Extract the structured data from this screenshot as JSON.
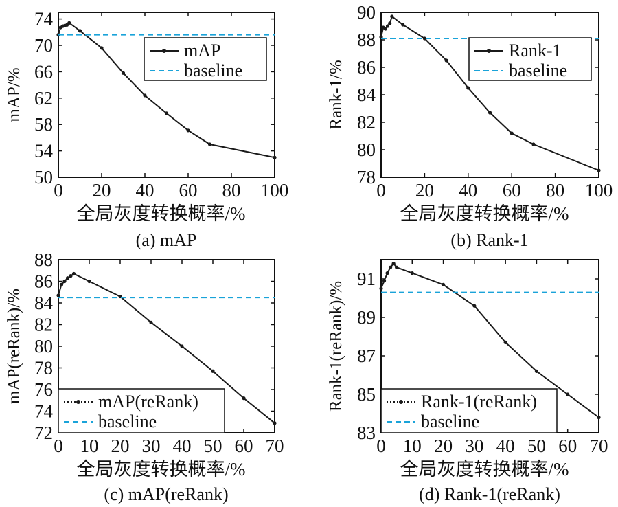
{
  "chart_data": [
    {
      "type": "line",
      "caption": "(a) mAP",
      "xlabel": "全局灰度转换概率/%",
      "ylabel": "mAP/%",
      "xlim": [
        0,
        100
      ],
      "ylim": [
        50,
        75
      ],
      "xticks": [
        0,
        20,
        40,
        60,
        80,
        100
      ],
      "yticks": [
        50,
        54,
        58,
        62,
        66,
        70,
        74
      ],
      "legend_position": "top-right",
      "series": [
        {
          "name": "mAP",
          "style": "line-dots",
          "x": [
            0,
            1,
            2,
            3,
            4,
            5,
            10,
            20,
            30,
            40,
            50,
            60,
            70,
            100
          ],
          "y": [
            71.6,
            72.7,
            72.9,
            73.0,
            73.1,
            73.4,
            72.2,
            69.6,
            65.8,
            62.4,
            59.7,
            57.1,
            55.0,
            53.0
          ]
        },
        {
          "name": "baseline",
          "style": "dashed",
          "x": [
            0,
            100
          ],
          "y": [
            71.6,
            71.6
          ]
        }
      ]
    },
    {
      "type": "line",
      "caption": "(b) Rank-1",
      "xlabel": "全局灰度转换概率/%",
      "ylabel": "Rank-1/%",
      "xlim": [
        0,
        100
      ],
      "ylim": [
        78,
        90
      ],
      "xticks": [
        0,
        20,
        40,
        60,
        80,
        100
      ],
      "yticks": [
        78,
        80,
        82,
        84,
        86,
        88,
        90
      ],
      "legend_position": "top-right",
      "series": [
        {
          "name": "Rank-1",
          "style": "line-dots",
          "x": [
            0,
            1,
            2,
            3,
            4,
            5,
            10,
            20,
            30,
            40,
            50,
            60,
            70,
            100
          ],
          "y": [
            88.2,
            88.9,
            88.8,
            89.0,
            89.2,
            89.7,
            89.1,
            88.1,
            86.5,
            84.5,
            82.7,
            81.2,
            80.4,
            78.5
          ]
        },
        {
          "name": "baseline",
          "style": "dashed",
          "x": [
            0,
            100
          ],
          "y": [
            88.1,
            88.1
          ]
        }
      ]
    },
    {
      "type": "line",
      "caption": "(c) mAP(reRank)",
      "xlabel": "全局灰度转换概率/%",
      "ylabel": "mAP(reRank)/%",
      "xlim": [
        0,
        70
      ],
      "ylim": [
        72,
        88
      ],
      "xticks": [
        0,
        10,
        20,
        30,
        40,
        50,
        60,
        70
      ],
      "yticks": [
        72,
        74,
        76,
        78,
        80,
        82,
        84,
        86,
        88
      ],
      "legend_position": "bottom-left",
      "series": [
        {
          "name": "mAP(reRank)",
          "style": "dotted-dots",
          "x": [
            0,
            1,
            2,
            3,
            4,
            5,
            10,
            20,
            30,
            40,
            50,
            60,
            70
          ],
          "y": [
            84.7,
            85.7,
            86.0,
            86.3,
            86.5,
            86.7,
            86.0,
            84.6,
            82.2,
            80.0,
            77.7,
            75.2,
            72.9
          ]
        },
        {
          "name": "baseline",
          "style": "dashed",
          "x": [
            0,
            70
          ],
          "y": [
            84.5,
            84.5
          ]
        }
      ]
    },
    {
      "type": "line",
      "caption": "(d) Rank-1(reRank)",
      "xlabel": "全局灰度转换概率/%",
      "ylabel": "Rank-1(reRank)/%",
      "xlim": [
        0,
        70
      ],
      "ylim": [
        83,
        92
      ],
      "xticks": [
        0,
        10,
        20,
        30,
        40,
        50,
        60,
        70
      ],
      "yticks": [
        83,
        85,
        87,
        89,
        91
      ],
      "legend_position": "bottom-left",
      "series": [
        {
          "name": "Rank-1(reRank)",
          "style": "dotted-dots",
          "x": [
            0,
            1,
            2,
            3,
            4,
            5,
            10,
            20,
            30,
            40,
            50,
            60,
            70
          ],
          "y": [
            90.5,
            90.9,
            91.3,
            91.6,
            91.8,
            91.6,
            91.3,
            90.7,
            89.6,
            87.7,
            86.2,
            85.0,
            83.8
          ]
        },
        {
          "name": "baseline",
          "style": "dashed",
          "x": [
            0,
            70
          ],
          "y": [
            90.3,
            90.3
          ]
        }
      ]
    }
  ],
  "colors": {
    "line": "#1a1a1a",
    "baseline": "#1aa3d9",
    "axis": "#111111"
  }
}
